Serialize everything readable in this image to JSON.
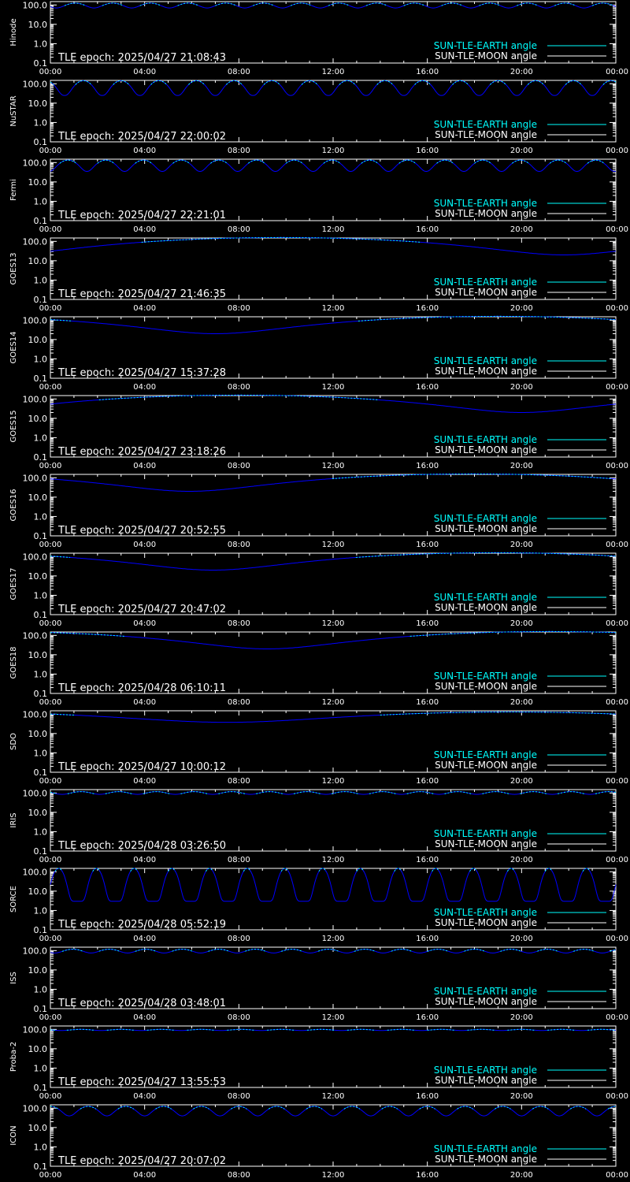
{
  "legend": {
    "earth_label": "SUN-TLE-EARTH angle",
    "moon_label": "SUN-TLE-MOON angle",
    "earth_color": "#00ffff",
    "moon_color": "#ffffff",
    "curve_color": "#0000ff"
  },
  "chart_data": [
    {
      "type": "line",
      "ylabel": "Hinode",
      "epoch_text": "TLE epoch: 2025/04/27 21:08:43",
      "x_ticks": [
        "00:00",
        "04:00",
        "08:00",
        "12:00",
        "16:00",
        "20:00",
        "00:00"
      ],
      "y_ticks": [
        "0.1",
        "1.0",
        "10.0",
        "100.0"
      ],
      "ylim": [
        0.1,
        150
      ],
      "y_scale": "log",
      "x_range_hours": [
        0,
        24
      ],
      "series": [
        {
          "model": "periodic",
          "period_hours": 1.6,
          "max_deg": 125,
          "min_deg": 70,
          "phase_hours": 0.55,
          "sharpness": 1.0
        }
      ]
    },
    {
      "type": "line",
      "ylabel": "NuSTAR",
      "epoch_text": "TLE epoch: 2025/04/27 22:00:02",
      "x_ticks": [
        "00:00",
        "04:00",
        "08:00",
        "12:00",
        "16:00",
        "20:00",
        "00:00"
      ],
      "y_ticks": [
        "0.1",
        "1.0",
        "10.0",
        "100.0"
      ],
      "ylim": [
        0.1,
        150
      ],
      "y_scale": "log",
      "x_range_hours": [
        0,
        24
      ],
      "series": [
        {
          "model": "periodic",
          "period_hours": 1.6,
          "max_deg": 145,
          "min_deg": 25,
          "phase_hours": 0.2,
          "sharpness": 1.3
        }
      ]
    },
    {
      "type": "line",
      "ylabel": "Fermi",
      "epoch_text": "TLE epoch: 2025/04/27 22:21:01",
      "x_ticks": [
        "00:00",
        "04:00",
        "08:00",
        "12:00",
        "16:00",
        "20:00",
        "00:00"
      ],
      "y_ticks": [
        "0.1",
        "1.0",
        "10.0",
        "100.0"
      ],
      "ylim": [
        0.1,
        150
      ],
      "y_scale": "log",
      "x_range_hours": [
        0,
        24
      ],
      "series": [
        {
          "model": "periodic",
          "period_hours": 1.6,
          "max_deg": 135,
          "min_deg": 35,
          "phase_hours": 0.85,
          "sharpness": 1.1
        }
      ]
    },
    {
      "type": "line",
      "ylabel": "GOES13",
      "epoch_text": "TLE epoch: 2025/04/27 21:46:35",
      "x_ticks": [
        "00:00",
        "04:00",
        "08:00",
        "12:00",
        "16:00",
        "20:00",
        "00:00"
      ],
      "y_ticks": [
        "0.1",
        "1.0",
        "10.0",
        "100.0"
      ],
      "ylim": [
        0.1,
        150
      ],
      "y_scale": "log",
      "x_range_hours": [
        0,
        24
      ],
      "series": [
        {
          "model": "daily",
          "min_deg": 20,
          "min_hour": 21.8,
          "max_deg": 158
        }
      ]
    },
    {
      "type": "line",
      "ylabel": "GOES14",
      "epoch_text": "TLE epoch: 2025/04/27 15:37:28",
      "x_ticks": [
        "00:00",
        "04:00",
        "08:00",
        "12:00",
        "16:00",
        "20:00",
        "00:00"
      ],
      "y_ticks": [
        "0.1",
        "1.0",
        "10.0",
        "100.0"
      ],
      "ylim": [
        0.1,
        150
      ],
      "y_scale": "log",
      "x_range_hours": [
        0,
        24
      ],
      "series": [
        {
          "model": "daily",
          "min_deg": 20,
          "min_hour": 7.0,
          "max_deg": 158
        }
      ]
    },
    {
      "type": "line",
      "ylabel": "GOES15",
      "epoch_text": "TLE epoch: 2025/04/27 23:18:26",
      "x_ticks": [
        "00:00",
        "04:00",
        "08:00",
        "12:00",
        "16:00",
        "20:00",
        "00:00"
      ],
      "y_ticks": [
        "0.1",
        "1.0",
        "10.0",
        "100.0"
      ],
      "ylim": [
        0.1,
        150
      ],
      "y_scale": "log",
      "x_range_hours": [
        0,
        24
      ],
      "series": [
        {
          "model": "daily",
          "min_deg": 20,
          "min_hour": 20.0,
          "max_deg": 158
        }
      ]
    },
    {
      "type": "line",
      "ylabel": "GOES16",
      "epoch_text": "TLE epoch: 2025/04/27 20:52:55",
      "x_ticks": [
        "00:00",
        "04:00",
        "08:00",
        "12:00",
        "16:00",
        "20:00",
        "00:00"
      ],
      "y_ticks": [
        "0.1",
        "1.0",
        "10.0",
        "100.0"
      ],
      "ylim": [
        0.1,
        150
      ],
      "y_scale": "log",
      "x_range_hours": [
        0,
        24
      ],
      "series": [
        {
          "model": "daily",
          "min_deg": 20,
          "min_hour": 5.9,
          "max_deg": 158
        }
      ]
    },
    {
      "type": "line",
      "ylabel": "GOES17",
      "epoch_text": "TLE epoch: 2025/04/27 20:47:02",
      "x_ticks": [
        "00:00",
        "04:00",
        "08:00",
        "12:00",
        "16:00",
        "20:00",
        "00:00"
      ],
      "y_ticks": [
        "0.1",
        "1.0",
        "10.0",
        "100.0"
      ],
      "ylim": [
        0.1,
        150
      ],
      "y_scale": "log",
      "x_range_hours": [
        0,
        24
      ],
      "series": [
        {
          "model": "daily",
          "min_deg": 20,
          "min_hour": 6.9,
          "max_deg": 158
        }
      ]
    },
    {
      "type": "line",
      "ylabel": "GOES18",
      "epoch_text": "TLE epoch: 2025/04/28 06:10:11",
      "x_ticks": [
        "00:00",
        "04:00",
        "08:00",
        "12:00",
        "16:00",
        "20:00",
        "00:00"
      ],
      "y_ticks": [
        "0.1",
        "1.0",
        "10.0",
        "100.0"
      ],
      "ylim": [
        0.1,
        150
      ],
      "y_scale": "log",
      "x_range_hours": [
        0,
        24
      ],
      "series": [
        {
          "model": "daily",
          "min_deg": 20,
          "min_hour": 9.2,
          "max_deg": 158
        }
      ]
    },
    {
      "type": "line",
      "ylabel": "SDO",
      "epoch_text": "TLE epoch: 2025/04/27 10:00:12",
      "x_ticks": [
        "00:00",
        "04:00",
        "08:00",
        "12:00",
        "16:00",
        "20:00",
        "00:00"
      ],
      "y_ticks": [
        "0.1",
        "1.0",
        "10.0",
        "100.0"
      ],
      "ylim": [
        0.1,
        150
      ],
      "y_scale": "log",
      "x_range_hours": [
        0,
        24
      ],
      "series": [
        {
          "model": "daily",
          "min_deg": 38,
          "min_hour": 7.5,
          "max_deg": 130
        }
      ]
    },
    {
      "type": "line",
      "ylabel": "IRIS",
      "epoch_text": "TLE epoch: 2025/04/28 03:26:50",
      "x_ticks": [
        "00:00",
        "04:00",
        "08:00",
        "12:00",
        "16:00",
        "20:00",
        "00:00"
      ],
      "y_ticks": [
        "0.1",
        "1.0",
        "10.0",
        "100.0"
      ],
      "ylim": [
        0.1,
        150
      ],
      "y_scale": "log",
      "x_range_hours": [
        0,
        24
      ],
      "series": [
        {
          "model": "periodic",
          "period_hours": 1.6,
          "max_deg": 118,
          "min_deg": 85,
          "phase_hours": 0.3,
          "sharpness": 1.0
        }
      ]
    },
    {
      "type": "line",
      "ylabel": "SORCE",
      "epoch_text": "TLE epoch: 2025/04/28 05:52:19",
      "x_ticks": [
        "00:00",
        "04:00",
        "08:00",
        "12:00",
        "16:00",
        "20:00",
        "00:00"
      ],
      "y_ticks": [
        "0.1",
        "1.0",
        "10.0",
        "100.0"
      ],
      "ylim": [
        0.1,
        150
      ],
      "y_scale": "log",
      "x_range_hours": [
        0,
        24
      ],
      "series": [
        {
          "model": "dip",
          "period_hours": 1.6,
          "max_deg": 150,
          "min_deg": 3,
          "phase_hours": 1.25,
          "sharpness": 4.0
        }
      ]
    },
    {
      "type": "line",
      "ylabel": "ISS",
      "epoch_text": "TLE epoch: 2025/04/28 03:48:01",
      "x_ticks": [
        "00:00",
        "04:00",
        "08:00",
        "12:00",
        "16:00",
        "20:00",
        "00:00"
      ],
      "y_ticks": [
        "0.1",
        "1.0",
        "10.0",
        "100.0"
      ],
      "ylim": [
        0.1,
        150
      ],
      "y_scale": "log",
      "x_range_hours": [
        0,
        24
      ],
      "series": [
        {
          "model": "periodic",
          "period_hours": 1.55,
          "max_deg": 118,
          "min_deg": 75,
          "phase_hours": 0.6,
          "sharpness": 1.0
        }
      ]
    },
    {
      "type": "line",
      "ylabel": "Proba-2",
      "epoch_text": "TLE epoch: 2025/04/27 13:55:53",
      "x_ticks": [
        "00:00",
        "04:00",
        "08:00",
        "12:00",
        "16:00",
        "20:00",
        "00:00"
      ],
      "y_ticks": [
        "0.1",
        "1.0",
        "10.0",
        "100.0"
      ],
      "ylim": [
        0.1,
        150
      ],
      "y_scale": "log",
      "x_range_hours": [
        0,
        24
      ],
      "series": [
        {
          "model": "periodic",
          "period_hours": 1.7,
          "max_deg": 100,
          "min_deg": 88,
          "phase_hours": 0.4,
          "sharpness": 1.0
        }
      ]
    },
    {
      "type": "line",
      "ylabel": "ICON",
      "epoch_text": "TLE epoch: 2025/04/27 20:07:02",
      "x_ticks": [
        "00:00",
        "04:00",
        "08:00",
        "12:00",
        "16:00",
        "20:00",
        "00:00"
      ],
      "y_ticks": [
        "0.1",
        "1.0",
        "10.0",
        "100.0"
      ],
      "ylim": [
        0.1,
        150
      ],
      "y_scale": "log",
      "x_range_hours": [
        0,
        24
      ],
      "series": [
        {
          "model": "periodic",
          "period_hours": 1.6,
          "max_deg": 125,
          "min_deg": 40,
          "phase_hours": 0.0,
          "sharpness": 1.1
        }
      ]
    }
  ]
}
